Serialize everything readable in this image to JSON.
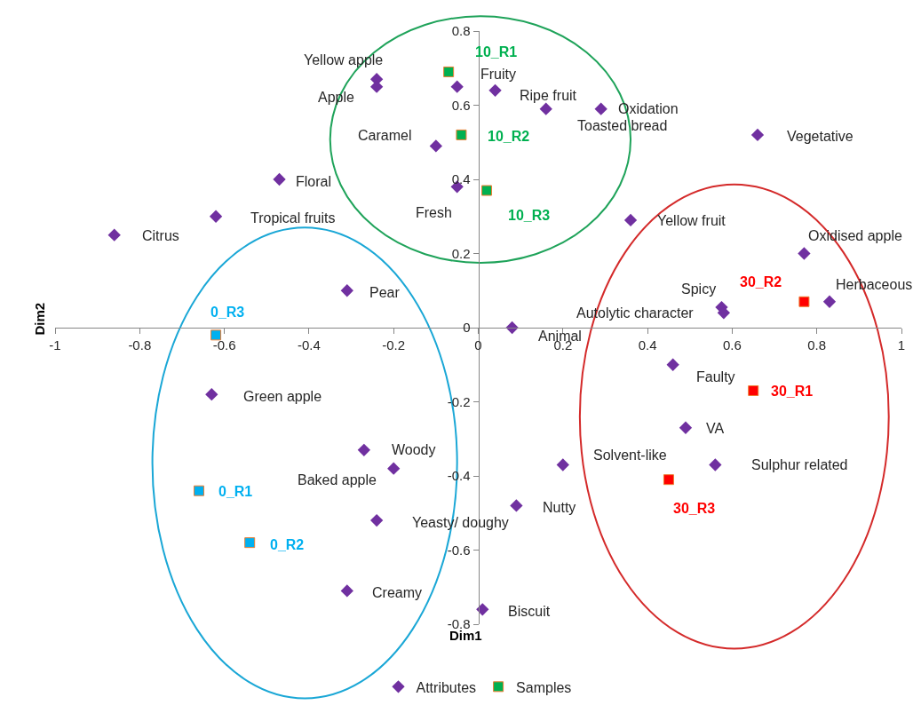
{
  "chart_data": {
    "type": "scatter",
    "xlabel": "Dim1",
    "ylabel": "Dim2",
    "xlim": [
      -1,
      1
    ],
    "ylim": [
      -0.8,
      0.8
    ],
    "xticks": [
      -1,
      -0.8,
      -0.6,
      -0.4,
      -0.2,
      0,
      0.2,
      0.4,
      0.6,
      0.8,
      1
    ],
    "yticks": [
      -0.8,
      -0.6,
      -0.4,
      -0.2,
      0,
      0.2,
      0.4,
      0.6,
      0.8
    ],
    "grid": false,
    "legend": "bottom",
    "series": [
      {
        "name": "Attributes",
        "color": "#7030a0",
        "marker": "diamond",
        "x": [
          -0.24,
          -0.24,
          -0.05,
          0.04,
          0.16,
          0.29,
          -0.1,
          0.66,
          -0.47,
          -0.05,
          -0.62,
          -0.86,
          0.36,
          0.77,
          -0.31,
          0.83,
          0.575,
          0.58,
          0.08,
          0.46,
          -0.63,
          0.49,
          -0.27,
          -0.2,
          0.2,
          0.56,
          -0.24,
          0.09,
          -0.31,
          0.01
        ],
        "values": [
          0.67,
          0.65,
          0.65,
          0.64,
          0.59,
          0.59,
          0.49,
          0.52,
          0.4,
          0.38,
          0.3,
          0.25,
          0.29,
          0.2,
          0.1,
          0.07,
          0.055,
          0.04,
          0.0,
          -0.1,
          -0.18,
          -0.27,
          -0.33,
          -0.38,
          -0.37,
          -0.37,
          -0.52,
          -0.48,
          -0.71,
          -0.76
        ]
      },
      {
        "name": "Samples",
        "color": "#ed7d31",
        "marker": "square",
        "x": [
          -0.07,
          -0.04,
          0.02,
          -0.62,
          -0.66,
          -0.54,
          0.77,
          0.65,
          0.45
        ],
        "values": [
          0.69,
          0.52,
          0.37,
          -0.02,
          -0.44,
          -0.58,
          0.07,
          -0.17,
          -0.41
        ],
        "colors": [
          "#00b050",
          "#00b050",
          "#00b050",
          "#00b0f0",
          "#00b0f0",
          "#00b0f0",
          "#ff0000",
          "#ff0000",
          "#ff0000"
        ]
      }
    ],
    "annotations": [
      {
        "text": "Yellow apple",
        "x": -0.24,
        "y": 0.67
      },
      {
        "text": "Apple",
        "x": -0.24,
        "y": 0.65
      },
      {
        "text": "Fruity",
        "x": -0.05,
        "y": 0.65
      },
      {
        "text": "Ripe fruit",
        "x": 0.04,
        "y": 0.64
      },
      {
        "text": "Toasted bread",
        "x": 0.16,
        "y": 0.59
      },
      {
        "text": "Oxidation",
        "x": 0.29,
        "y": 0.59
      },
      {
        "text": "Caramel",
        "x": -0.1,
        "y": 0.49
      },
      {
        "text": "Vegetative",
        "x": 0.66,
        "y": 0.52
      },
      {
        "text": "Floral",
        "x": -0.47,
        "y": 0.4
      },
      {
        "text": "Fresh",
        "x": -0.05,
        "y": 0.38
      },
      {
        "text": "Tropical fruits",
        "x": -0.62,
        "y": 0.3
      },
      {
        "text": "Citrus",
        "x": -0.86,
        "y": 0.25
      },
      {
        "text": "Yellow fruit",
        "x": 0.36,
        "y": 0.29
      },
      {
        "text": "Oxidised apple",
        "x": 0.77,
        "y": 0.2
      },
      {
        "text": "Pear",
        "x": -0.31,
        "y": 0.1
      },
      {
        "text": "Herbaceous",
        "x": 0.83,
        "y": 0.07
      },
      {
        "text": "Spicy",
        "x": 0.575,
        "y": 0.055
      },
      {
        "text": "Autolytic character",
        "x": 0.58,
        "y": 0.04
      },
      {
        "text": "Animal",
        "x": 0.08,
        "y": 0.0
      },
      {
        "text": "Faulty",
        "x": 0.46,
        "y": -0.1
      },
      {
        "text": "Green apple",
        "x": -0.63,
        "y": -0.18
      },
      {
        "text": "VA",
        "x": 0.49,
        "y": -0.27
      },
      {
        "text": "Woody",
        "x": -0.27,
        "y": -0.33
      },
      {
        "text": "Baked apple",
        "x": -0.2,
        "y": -0.38
      },
      {
        "text": "Solvent-like",
        "x": 0.2,
        "y": -0.37
      },
      {
        "text": "Sulphur related",
        "x": 0.56,
        "y": -0.37
      },
      {
        "text": "Yeasty/ doughy",
        "x": -0.24,
        "y": -0.52
      },
      {
        "text": "Nutty",
        "x": 0.09,
        "y": -0.48
      },
      {
        "text": "Creamy",
        "x": -0.31,
        "y": -0.71
      },
      {
        "text": "Biscuit",
        "x": 0.01,
        "y": -0.76
      },
      {
        "text": "10_R1",
        "x": -0.07,
        "y": 0.69
      },
      {
        "text": "10_R2",
        "x": -0.04,
        "y": 0.52
      },
      {
        "text": "10_R3",
        "x": 0.02,
        "y": 0.37
      },
      {
        "text": "0_R3",
        "x": -0.62,
        "y": -0.02
      },
      {
        "text": "0_R1",
        "x": -0.66,
        "y": -0.44
      },
      {
        "text": "0_R2",
        "x": -0.54,
        "y": -0.58
      },
      {
        "text": "30_R2",
        "x": 0.77,
        "y": 0.07
      },
      {
        "text": "30_R1",
        "x": 0.65,
        "y": -0.17
      },
      {
        "text": "30_R3",
        "x": 0.45,
        "y": -0.41
      }
    ]
  }
}
